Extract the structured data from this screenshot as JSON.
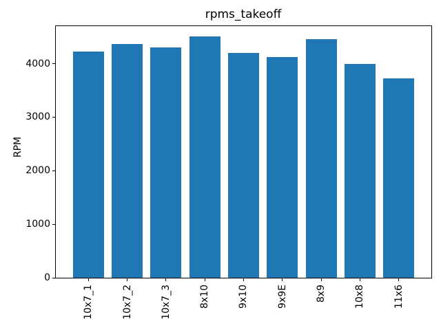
{
  "figure": {
    "background": "#ffffff"
  },
  "chart_data": {
    "type": "bar",
    "title": "rpms_takeoff",
    "xlabel": "",
    "ylabel": "RPM",
    "categories": [
      "10x7_1",
      "10x7_2",
      "10x7_3",
      "8x10",
      "9x10",
      "9x9E",
      "8x9",
      "10x8",
      "11x6"
    ],
    "values": [
      4220,
      4360,
      4305,
      4505,
      4205,
      4125,
      4450,
      3990,
      3730
    ],
    "yticks": [
      0,
      1000,
      2000,
      3000,
      4000
    ],
    "ylim": [
      0,
      4700
    ],
    "xtick_rotation": 90,
    "bar_color": "#1f77b4",
    "grid": false,
    "legend": "none"
  }
}
